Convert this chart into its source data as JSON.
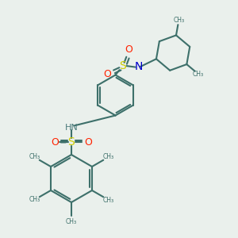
{
  "bg_color": "#eaf0ec",
  "bond_color": "#3d706a",
  "bond_width": 1.5,
  "atom_colors": {
    "S": "#cccc00",
    "O": "#ff2200",
    "N_blue": "#0000cc",
    "H": "#4a7a7a",
    "C": "#3d706a"
  },
  "layout": {
    "xlim": [
      0,
      10
    ],
    "ylim": [
      0,
      10
    ]
  }
}
